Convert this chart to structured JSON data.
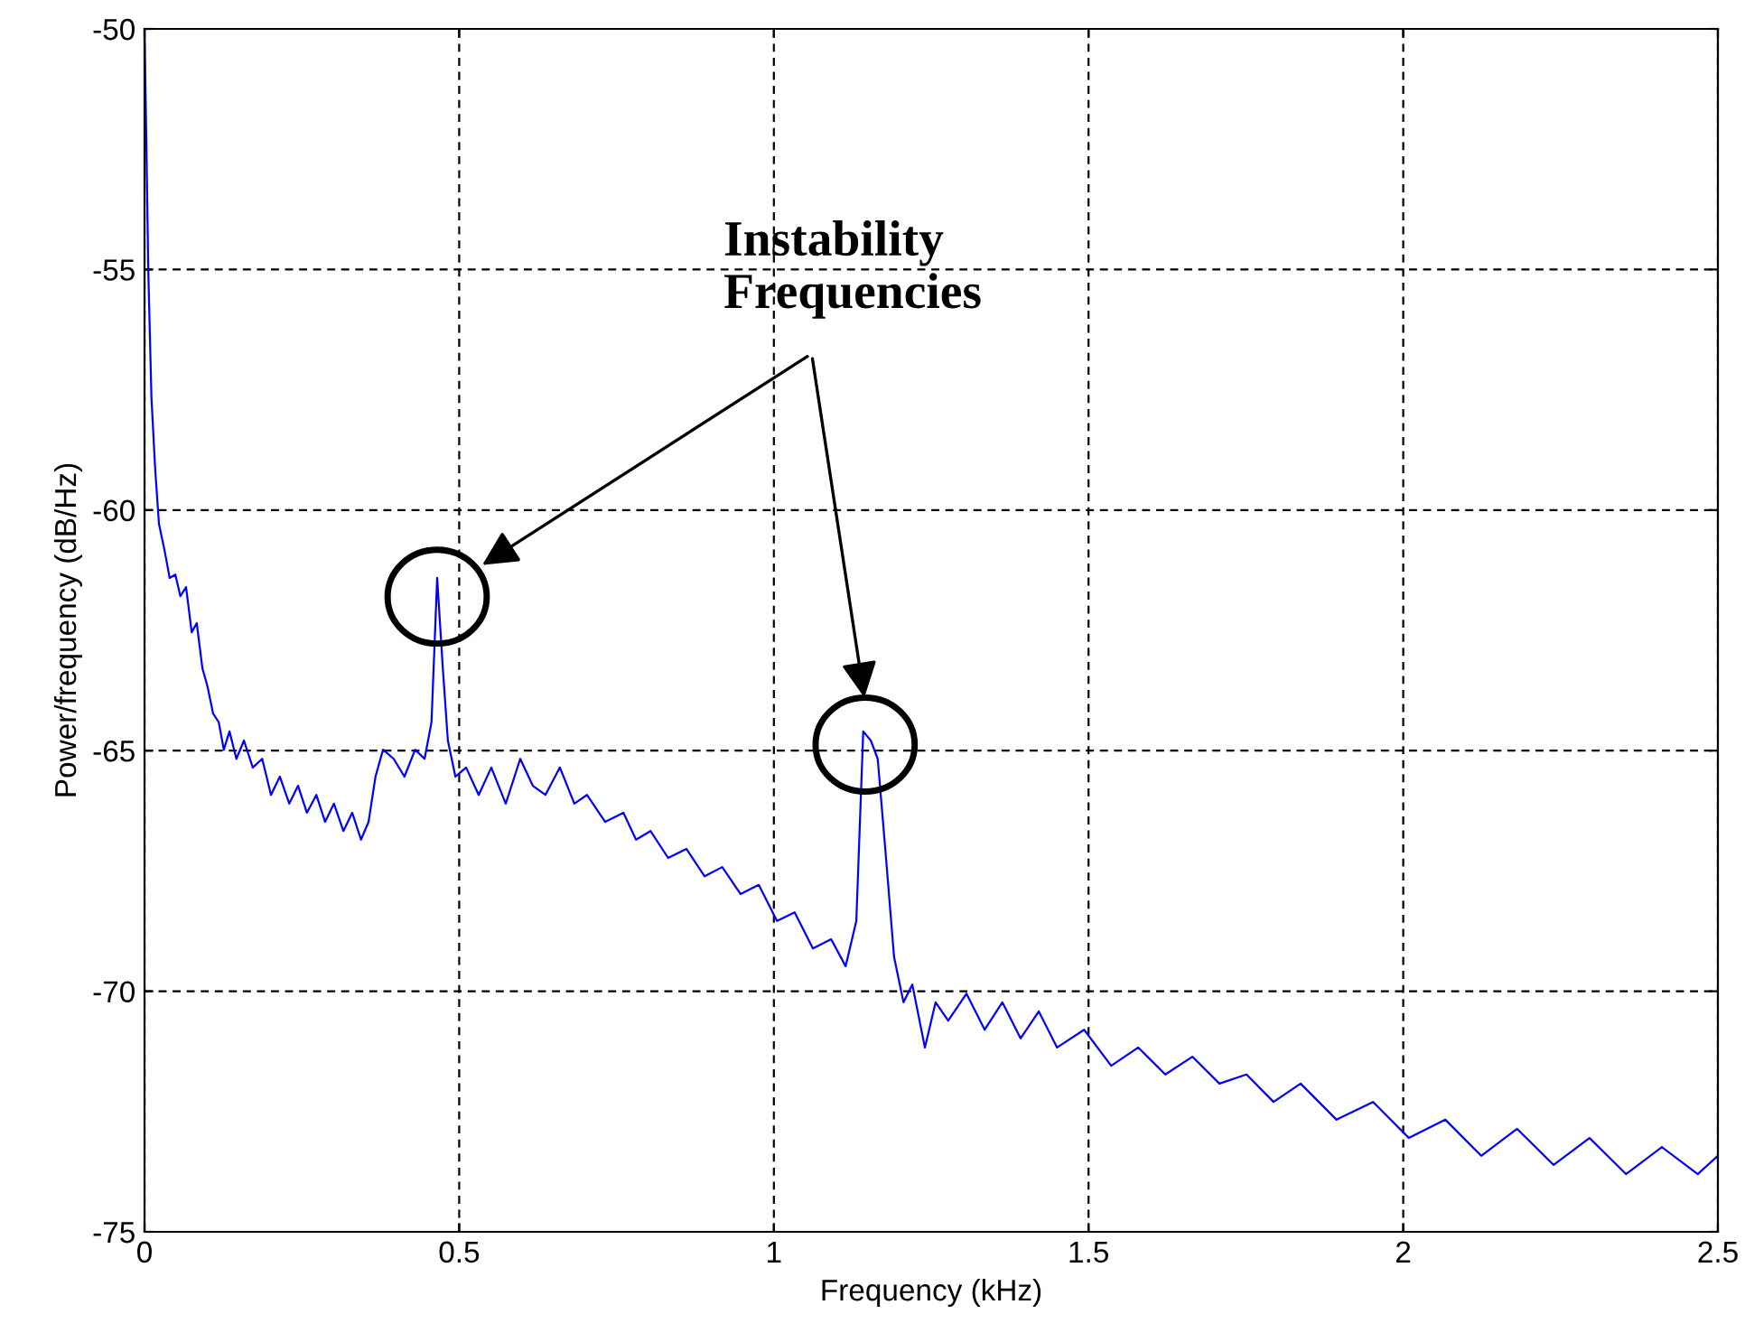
{
  "chart_data": {
    "type": "line",
    "xlabel": "Frequency (kHz)",
    "ylabel": "Power/frequency (dB/Hz)",
    "xlim": [
      0,
      2.5
    ],
    "xticks": [
      0,
      0.5,
      1,
      1.5,
      2,
      2.5
    ],
    "ylim": [
      -75,
      -50
    ],
    "yticks": [
      -75,
      -70,
      -65,
      -60,
      -55,
      -50
    ],
    "grid": true,
    "marker": "none",
    "line_style": "solid",
    "annotations": [
      "Instability\nFrequencies"
    ],
    "series": [
      {
        "color": "#0000ff",
        "x": [
          0,
          0.003,
          0.006,
          0.011,
          0.017,
          0.023,
          0.032,
          0.04,
          0.049,
          0.057,
          0.066,
          0.075,
          0.083,
          0.092,
          0.1,
          0.109,
          0.118,
          0.126,
          0.135,
          0.146,
          0.158,
          0.172,
          0.187,
          0.201,
          0.215,
          0.23,
          0.244,
          0.258,
          0.273,
          0.287,
          0.301,
          0.316,
          0.33,
          0.344,
          0.356,
          0.367,
          0.379,
          0.396,
          0.413,
          0.43,
          0.445,
          0.456,
          0.465,
          0.474,
          0.482,
          0.494,
          0.511,
          0.531,
          0.551,
          0.574,
          0.597,
          0.617,
          0.637,
          0.66,
          0.683,
          0.703,
          0.732,
          0.761,
          0.781,
          0.804,
          0.832,
          0.861,
          0.89,
          0.918,
          0.947,
          0.976,
          1.005,
          1.033,
          1.062,
          1.091,
          1.114,
          1.131,
          1.142,
          1.154,
          1.165,
          1.177,
          1.191,
          1.206,
          1.22,
          1.24,
          1.257,
          1.277,
          1.306,
          1.335,
          1.363,
          1.392,
          1.421,
          1.45,
          1.493,
          1.536,
          1.579,
          1.622,
          1.665,
          1.708,
          1.751,
          1.794,
          1.837,
          1.894,
          1.952,
          2.009,
          2.067,
          2.124,
          2.181,
          2.239,
          2.296,
          2.354,
          2.411,
          2.468,
          2.5
        ],
        "values": [
          -50,
          -52.4,
          -55.03,
          -57.66,
          -59.16,
          -60.29,
          -60.85,
          -61.41,
          -61.34,
          -61.79,
          -61.6,
          -62.54,
          -62.35,
          -63.29,
          -63.66,
          -64.23,
          -64.41,
          -64.98,
          -64.6,
          -65.17,
          -64.79,
          -65.35,
          -65.17,
          -65.92,
          -65.54,
          -66.1,
          -65.73,
          -66.29,
          -65.92,
          -66.48,
          -66.1,
          -66.67,
          -66.29,
          -66.85,
          -66.48,
          -65.54,
          -64.98,
          -65.17,
          -65.54,
          -64.98,
          -65.17,
          -64.41,
          -61.41,
          -63.29,
          -64.79,
          -65.54,
          -65.35,
          -65.92,
          -65.35,
          -66.1,
          -65.17,
          -65.73,
          -65.92,
          -65.35,
          -66.1,
          -65.92,
          -66.48,
          -66.29,
          -66.85,
          -66.67,
          -67.23,
          -67.04,
          -67.61,
          -67.42,
          -67.98,
          -67.79,
          -68.54,
          -68.36,
          -69.11,
          -68.92,
          -69.48,
          -68.54,
          -64.6,
          -64.79,
          -65.17,
          -67.04,
          -69.29,
          -70.23,
          -69.86,
          -71.17,
          -70.23,
          -70.61,
          -70.05,
          -70.8,
          -70.23,
          -70.98,
          -70.42,
          -71.17,
          -70.8,
          -71.55,
          -71.17,
          -71.73,
          -71.36,
          -71.92,
          -71.73,
          -72.3,
          -71.92,
          -72.67,
          -72.3,
          -73.05,
          -72.67,
          -73.42,
          -72.86,
          -73.61,
          -73.05,
          -73.8,
          -73.24,
          -73.8,
          -73.42
        ]
      }
    ]
  }
}
